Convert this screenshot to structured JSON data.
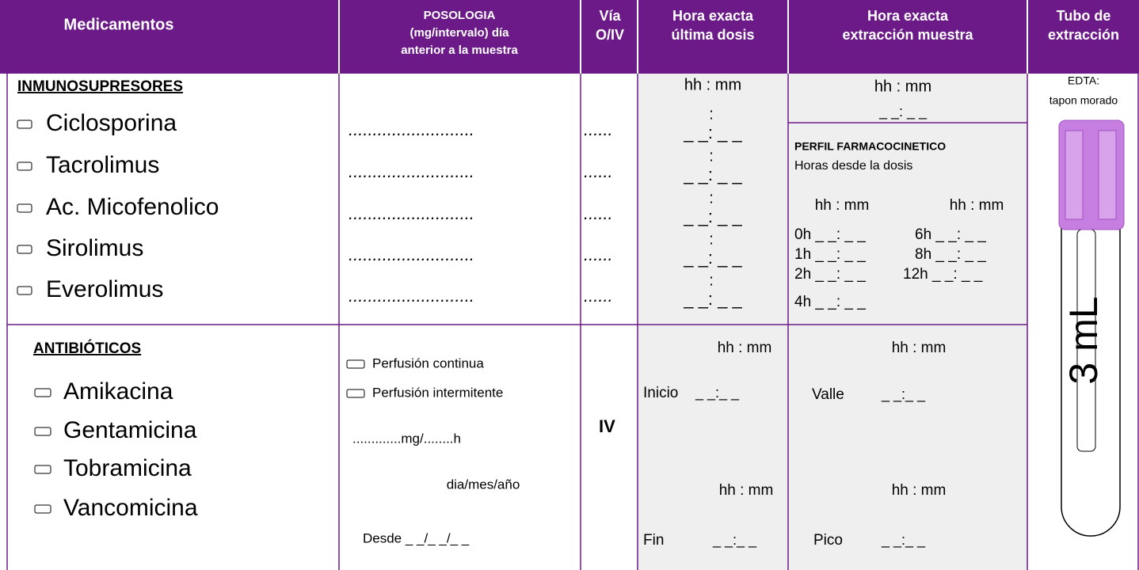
{
  "header": {
    "columns": [
      [
        "Medicamentos"
      ],
      [
        "POSOLOGIA",
        "(mg/intervalo) día",
        "anterior a la muestra"
      ],
      [
        "Vía",
        "O/IV"
      ],
      [
        "Hora exacta",
        "última dosis"
      ],
      [
        "Hora exacta",
        "extracción muestra"
      ],
      [
        "Tubo de",
        "extracción"
      ]
    ]
  },
  "immunosuppressants": {
    "title": "INMUNOSUPRESORES",
    "drugs": [
      {
        "name": "Ciclosporina",
        "dose": "..........................",
        "route": "......",
        "colon": ":",
        "time": "_ _: _ _"
      },
      {
        "name": "Tacrolimus",
        "dose": "..........................",
        "route": "......",
        "colon": ":",
        "time": "_ _: _ _"
      },
      {
        "name": "Ac. Micofenolico",
        "dose": "..........................",
        "route": "......",
        "colon": ":",
        "time": "_ _: _ _"
      },
      {
        "name": "Sirolimus",
        "dose": "..........................",
        "route": "......",
        "colon": ":",
        "time": "_ _: _ _"
      },
      {
        "name": "Everolimus",
        "dose": "..........................",
        "route": "......",
        "colon": ":",
        "time": "_ _: _ _"
      }
    ],
    "last_dose_format": "hh : mm",
    "extraction_format": "hh : mm",
    "extraction_time": "_ _: _ _",
    "profile": {
      "title": "PERFIL  FARMACOCINETICO",
      "subtitle": "Horas desde la dosis",
      "formats": [
        "hh : mm",
        "hh : mm"
      ],
      "times": [
        "0h _ _: _ _",
        "6h _ _: _ _",
        "1h _ _: _ _",
        "8h _ _: _ _",
        "2h _ _: _ _",
        "12h _ _: _ _",
        "4h _ _: _ _"
      ]
    }
  },
  "antibiotics": {
    "title": "ANTIBIÓTICOS",
    "drugs": [
      "Amikacina",
      "Gentamicina",
      "Tobramicina",
      "Vancomicina"
    ],
    "options": [
      "Perfusión continua",
      "Perfusión intermitente"
    ],
    "dose": ".............mg/........h",
    "date_format": "dia/mes/año",
    "since": "Desde _ _/_ _/_ _",
    "route": "IV",
    "start": {
      "format": "hh : mm",
      "label": "Inicio",
      "time": "_ _:_ _"
    },
    "end": {
      "format": "hh : mm",
      "label": "Fin",
      "time": "_ _:_ _"
    },
    "trough": {
      "format": "hh : mm",
      "label": "Valle",
      "time": "_ _:_ _"
    },
    "peak": {
      "format": "hh : mm",
      "label": "Pico",
      "time": "_ _:_ _"
    }
  },
  "tube": {
    "label": "EDTA:",
    "sublabel": "tapon morado",
    "volume": "3 mL"
  }
}
